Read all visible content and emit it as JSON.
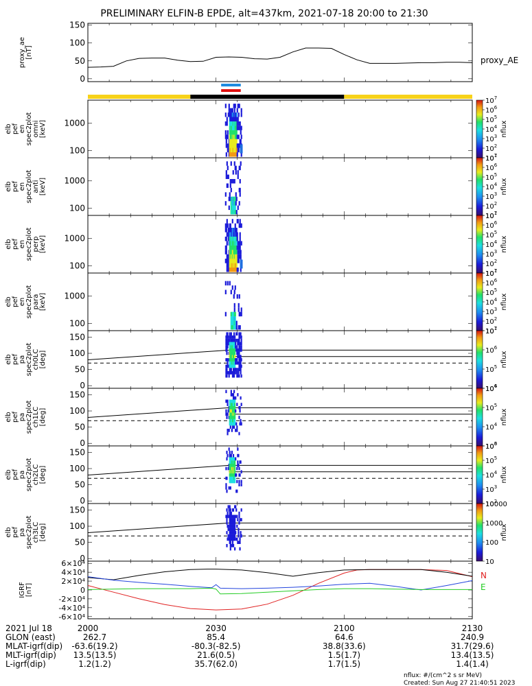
{
  "header": {
    "title": "PRELIMINARY ELFIN-B EPDE, alt=437km, 2021-07-18 20:00 to 21:30"
  },
  "colors": {
    "yellow_bar": "#f7d21a",
    "black_bar": "#000000",
    "blue_flag": "#1e8be0",
    "red_flag": "#e01010",
    "bx": "#e02020",
    "by": "#2244dd",
    "bz": "#22cc22"
  },
  "chart_data": [
    {
      "type": "line",
      "ylabel": "proxy_ae [nT]",
      "ylim": [
        0,
        150
      ],
      "yticks": [
        "0",
        "50",
        "100",
        "150"
      ],
      "xlim": [
        0,
        90
      ],
      "series": [
        {
          "name": "proxy_AE",
          "x": [
            0,
            3,
            6,
            9,
            12,
            15,
            18,
            21,
            24,
            27,
            30,
            33,
            36,
            39,
            42,
            45,
            48,
            51,
            54,
            57,
            60,
            63,
            66,
            69,
            72,
            75,
            78,
            81,
            84,
            87,
            90
          ],
          "y": [
            32,
            33,
            35,
            50,
            57,
            58,
            58,
            52,
            48,
            49,
            60,
            61,
            60,
            56,
            55,
            60,
            75,
            86,
            86,
            85,
            68,
            53,
            43,
            43,
            43,
            44,
            45,
            45,
            46,
            46,
            45
          ]
        }
      ]
    },
    {
      "type": "heatmap",
      "ylabel": "elb pef en spec2plot omni [keV]",
      "yscale": "log",
      "yticks": [
        "100",
        "1000"
      ],
      "colorbar_label": "nflux",
      "colorbar_ticks": [
        "10^1",
        "10^2",
        "10^3",
        "10^4",
        "10^5",
        "10^6",
        "10^7"
      ]
    },
    {
      "type": "heatmap",
      "ylabel": "elb pef en spec2plot anti [keV]",
      "yscale": "log",
      "yticks": [
        "100",
        "1000"
      ],
      "colorbar_label": "nflux",
      "colorbar_ticks": [
        "10^1",
        "10^2",
        "10^3",
        "10^4",
        "10^5",
        "10^6",
        "10^7"
      ]
    },
    {
      "type": "heatmap",
      "ylabel": "elb pef en spec2plot perp [keV]",
      "yscale": "log",
      "yticks": [
        "100",
        "1000"
      ],
      "colorbar_label": "nflux",
      "colorbar_ticks": [
        "10^1",
        "10^2",
        "10^3",
        "10^4",
        "10^5",
        "10^6",
        "10^7"
      ]
    },
    {
      "type": "heatmap",
      "ylabel": "elb pef en spec2plot para [keV]",
      "yscale": "log",
      "yticks": [
        "100",
        "1000"
      ],
      "colorbar_label": "nflux",
      "colorbar_ticks": [
        "10^1",
        "10^2",
        "10^3",
        "10^4",
        "10^5",
        "10^6",
        "10^7"
      ]
    },
    {
      "type": "heatmap",
      "ylabel": "elb pef pa spec2plot ch0LC [deg]",
      "ylim": [
        0,
        180
      ],
      "yticks": [
        "0",
        "50",
        "100",
        "150"
      ],
      "colorbar_label": "nflux",
      "colorbar_ticks": [
        "10^4",
        "10^5",
        "10^6",
        "10^7"
      ]
    },
    {
      "type": "heatmap",
      "ylabel": "elb pef pa spec2plot ch1LC [deg]",
      "ylim": [
        0,
        180
      ],
      "yticks": [
        "0",
        "50",
        "100",
        "150"
      ],
      "colorbar_label": "nflux",
      "colorbar_ticks": [
        "10^3",
        "10^4",
        "10^5",
        "10^6"
      ]
    },
    {
      "type": "heatmap",
      "ylabel": "elb pef pa spec2plot ch2LC [deg]",
      "ylim": [
        0,
        180
      ],
      "yticks": [
        "0",
        "50",
        "100",
        "150"
      ],
      "colorbar_label": "nflux",
      "colorbar_ticks": [
        "10^2",
        "10^3",
        "10^4",
        "10^5",
        "10^6"
      ]
    },
    {
      "type": "heatmap",
      "ylabel": "elb pef pa spec2plot ch3LC [deg]",
      "ylim": [
        0,
        180
      ],
      "yticks": [
        "0",
        "50",
        "100",
        "150"
      ],
      "colorbar_label": "nflux",
      "colorbar_ticks": [
        "10",
        "100",
        "1000",
        "10000"
      ]
    },
    {
      "type": "line",
      "ylabel": "IGRF [nT]",
      "ylim": [
        -60000,
        60000
      ],
      "yticks": [
        "-6×10⁴",
        "-4×10⁴",
        "-2×10⁴",
        "0",
        "2×10⁴",
        "4×10⁴",
        "6×10⁴"
      ],
      "series": [
        {
          "name": "N",
          "x": [
            0,
            6,
            12,
            18,
            24,
            30,
            36,
            42,
            48,
            54,
            60,
            63,
            66,
            72,
            78,
            84,
            90
          ],
          "y": [
            10000,
            -5000,
            -20000,
            -33000,
            -42000,
            -45000,
            -43000,
            -32000,
            -12000,
            15000,
            38000,
            45000,
            46000,
            46000,
            46000,
            44000,
            30000
          ]
        },
        {
          "name": "",
          "x": [
            0,
            6,
            12,
            18,
            24,
            28,
            30,
            36,
            42,
            48,
            54,
            60,
            66,
            72,
            78,
            84,
            90
          ],
          "y": [
            28000,
            23000,
            33000,
            41000,
            46000,
            47000,
            47000,
            45000,
            39000,
            31000,
            39000,
            45000,
            46000,
            46000,
            46000,
            40000,
            31000
          ]
        },
        {
          "name": "",
          "x": [
            0,
            6,
            12,
            18,
            24,
            29,
            30,
            31,
            36,
            42,
            48,
            54,
            60,
            66,
            72,
            78,
            84,
            90
          ],
          "y": [
            30000,
            22000,
            17000,
            13000,
            8000,
            5000,
            12000,
            4000,
            3000,
            4000,
            6000,
            9000,
            13000,
            15000,
            8000,
            0,
            10000,
            21000
          ]
        },
        {
          "name": "E",
          "x": [
            0,
            6,
            12,
            18,
            24,
            29,
            30,
            31,
            36,
            42,
            48,
            54,
            60,
            66,
            72,
            78,
            84,
            90
          ],
          "y": [
            1000,
            2000,
            3000,
            3000,
            3000,
            4000,
            2000,
            -9000,
            -8000,
            -5000,
            -2000,
            1000,
            3000,
            3000,
            2000,
            1000,
            1000,
            1000
          ]
        }
      ]
    }
  ],
  "time_axis": {
    "date_label": "2021 Jul 18",
    "ticks": [
      "2000",
      "2030",
      "2100",
      "2130"
    ]
  },
  "ephemeris": [
    {
      "label": "GLON (east)",
      "values": [
        "262.7",
        "85.4",
        "64.6",
        "240.9"
      ]
    },
    {
      "label": "MLAT-igrf(dip)",
      "values": [
        "-63.6(19.2)",
        "-80.3(-82.5)",
        "38.8(33.6)",
        "31.7(29.6)"
      ]
    },
    {
      "label": "MLT-igrf(dip)",
      "values": [
        "13.5(13.5)",
        "21.6(0.5)",
        "1.5(1.7)",
        "13.4(13.5)"
      ]
    },
    {
      "label": "L-igrf(dip)",
      "values": [
        "1.2(1.2)",
        "35.7(62.0)",
        "1.7(1.5)",
        "1.4(1.4)"
      ]
    }
  ],
  "footer": {
    "units": "nflux: #/(cm^2 s sr MeV)",
    "created": "Created: Sun Aug 27 21:40:51 2023"
  }
}
